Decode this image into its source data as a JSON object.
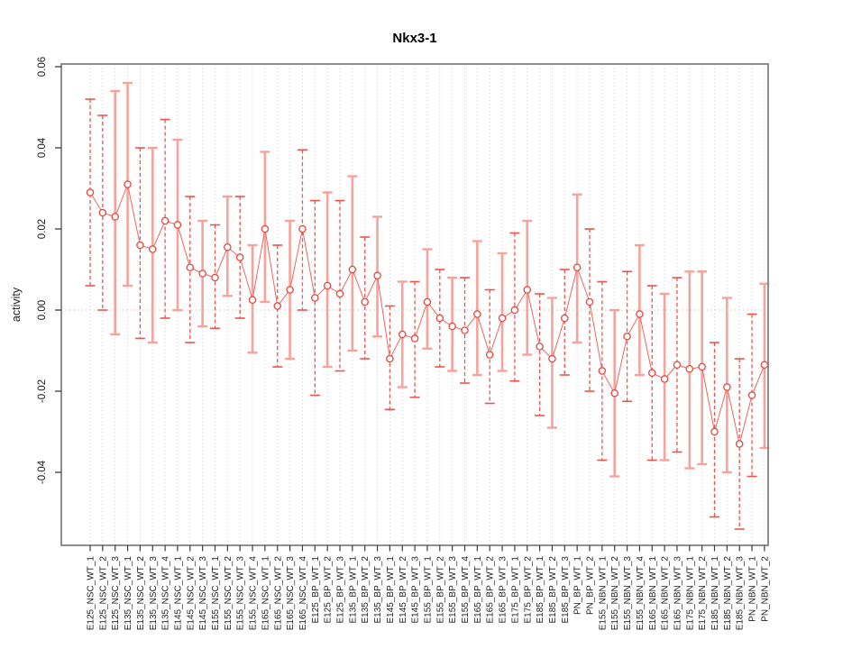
{
  "chart_data": {
    "type": "scatter",
    "title": "Nkx3-1",
    "ylabel": "activity",
    "xlabel": "",
    "legend": "none",
    "grid": "vertical-dotted-per-category",
    "zero_reference_line": 0.0,
    "ylim": [
      -0.058,
      0.0605
    ],
    "yticks": [
      0.06,
      0.04,
      0.02,
      0.0,
      -0.02,
      -0.04
    ],
    "ytick_labels": [
      "0.06",
      "0.04",
      "0.02",
      "0.00",
      "-0.02",
      "-0.04"
    ],
    "categories": [
      "E125_NSC_WT_1",
      "E125_NSC_WT_2",
      "E125_NSC_WT_3",
      "E135_NSC_WT_1",
      "E135_NSC_WT_2",
      "E135_NSC_WT_3",
      "E135_NSC_WT_4",
      "E145_NSC_WT_1",
      "E145_NSC_WT_2",
      "E145_NSC_WT_3",
      "E155_NSC_WT_1",
      "E155_NSC_WT_2",
      "E155_NSC_WT_3",
      "E155_NSC_WT_4",
      "E165_NSC_WT_1",
      "E165_NSC_WT_2",
      "E165_NSC_WT_3",
      "E165_NSC_WT_4",
      "E125_BP_WT_1",
      "E125_BP_WT_2",
      "E125_BP_WT_3",
      "E135_BP_WT_1",
      "E135_BP_WT_2",
      "E135_BP_WT_3",
      "E145_BP_WT_1",
      "E145_BP_WT_2",
      "E145_BP_WT_3",
      "E155_BP_WT_1",
      "E155_BP_WT_2",
      "E155_BP_WT_3",
      "E155_BP_WT_4",
      "E165_BP_WT_1",
      "E165_BP_WT_2",
      "E165_BP_WT_3",
      "E175_BP_WT_1",
      "E175_BP_WT_2",
      "E185_BP_WT_1",
      "E185_BP_WT_2",
      "E185_BP_WT_3",
      "PN_BP_WT_1",
      "PN_BP_WT_2",
      "E155_NBN_WT_1",
      "E155_NBN_WT_2",
      "E155_NBN_WT_3",
      "E155_NBN_WT_4",
      "E165_NBN_WT_1",
      "E165_NBN_WT_2",
      "E165_NBN_WT_3",
      "E175_NBN_WT_1",
      "E175_NBN_WT_2",
      "E185_NBN_WT_1",
      "E185_NBN_WT_2",
      "E185_NBN_WT_3",
      "PN_NBN_WT_1",
      "PN_NBN_WT_2"
    ],
    "series": [
      {
        "name": "activity",
        "values": [
          0.029,
          0.024,
          0.023,
          0.031,
          0.016,
          0.015,
          0.022,
          0.021,
          0.0105,
          0.009,
          0.008,
          0.0155,
          0.013,
          0.0025,
          0.02,
          0.001,
          0.005,
          0.02,
          0.003,
          0.006,
          0.004,
          0.01,
          0.002,
          0.0085,
          -0.012,
          -0.006,
          -0.007,
          0.002,
          -0.002,
          -0.004,
          -0.005,
          -0.001,
          -0.011,
          -0.002,
          0.0,
          0.005,
          -0.009,
          -0.012,
          -0.002,
          0.0105,
          0.002,
          -0.015,
          -0.0205,
          -0.0065,
          -0.001,
          -0.0155,
          -0.017,
          -0.0135,
          -0.0145,
          -0.014,
          -0.03,
          -0.019,
          -0.033,
          -0.021,
          -0.0135
        ],
        "lower": [
          0.006,
          0.0,
          -0.006,
          0.006,
          -0.007,
          -0.008,
          -0.002,
          0.0,
          -0.008,
          -0.004,
          -0.0045,
          0.0035,
          -0.002,
          -0.0105,
          0.002,
          -0.014,
          -0.012,
          0.0,
          -0.021,
          -0.014,
          -0.015,
          -0.01,
          -0.012,
          -0.0065,
          -0.0245,
          -0.019,
          -0.0215,
          -0.0095,
          -0.014,
          -0.015,
          -0.018,
          -0.016,
          -0.023,
          -0.015,
          -0.0175,
          -0.011,
          -0.026,
          -0.029,
          -0.016,
          -0.008,
          -0.02,
          -0.037,
          -0.041,
          -0.0225,
          -0.016,
          -0.037,
          -0.037,
          -0.035,
          -0.039,
          -0.038,
          -0.051,
          -0.04,
          -0.054,
          -0.041,
          -0.034
        ],
        "upper": [
          0.052,
          0.048,
          0.054,
          0.056,
          0.04,
          0.04,
          0.047,
          0.042,
          0.028,
          0.022,
          0.021,
          0.028,
          0.028,
          0.016,
          0.039,
          0.016,
          0.022,
          0.0395,
          0.027,
          0.029,
          0.027,
          0.033,
          0.018,
          0.023,
          0.001,
          0.007,
          0.007,
          0.015,
          0.01,
          0.008,
          0.008,
          0.017,
          0.005,
          0.014,
          0.019,
          0.022,
          0.004,
          0.003,
          0.01,
          0.0285,
          0.02,
          0.007,
          0.0,
          0.0095,
          0.016,
          0.006,
          0.004,
          0.008,
          0.0095,
          0.0095,
          -0.008,
          0.003,
          -0.012,
          -0.001,
          0.0065
        ]
      }
    ],
    "bar_styles": [
      "dashed",
      "dashed",
      "solid",
      "solid",
      "dashed",
      "solid",
      "dashed",
      "solid",
      "dashed",
      "solid",
      "dashed",
      "solid",
      "dashed",
      "solid",
      "solid",
      "dashed",
      "solid",
      "dashed",
      "dashed",
      "solid",
      "dashed",
      "solid",
      "dashed",
      "solid",
      "dashed",
      "solid",
      "dashed",
      "solid",
      "dashed",
      "solid",
      "dashed",
      "solid",
      "dashed",
      "solid",
      "dashed",
      "solid",
      "dashed",
      "solid",
      "dashed",
      "solid",
      "dashed",
      "dashed",
      "solid",
      "dashed",
      "solid",
      "dashed",
      "solid",
      "dashed",
      "solid",
      "solid",
      "dashed",
      "solid",
      "dashed",
      "dashed",
      "solid"
    ],
    "colors": {
      "point": "#e8453c",
      "dashed_bar": "#ee544b",
      "solid_bar": "#f7a29b",
      "connector_line": "#f0655c",
      "grid": "#dcdcdc",
      "zero_line": "#c9c9c9",
      "box": "#828282",
      "tick": "#3c3c3c",
      "label_text": "#1d1d1d",
      "title_text": "#000000",
      "background": "#ffffff"
    }
  }
}
